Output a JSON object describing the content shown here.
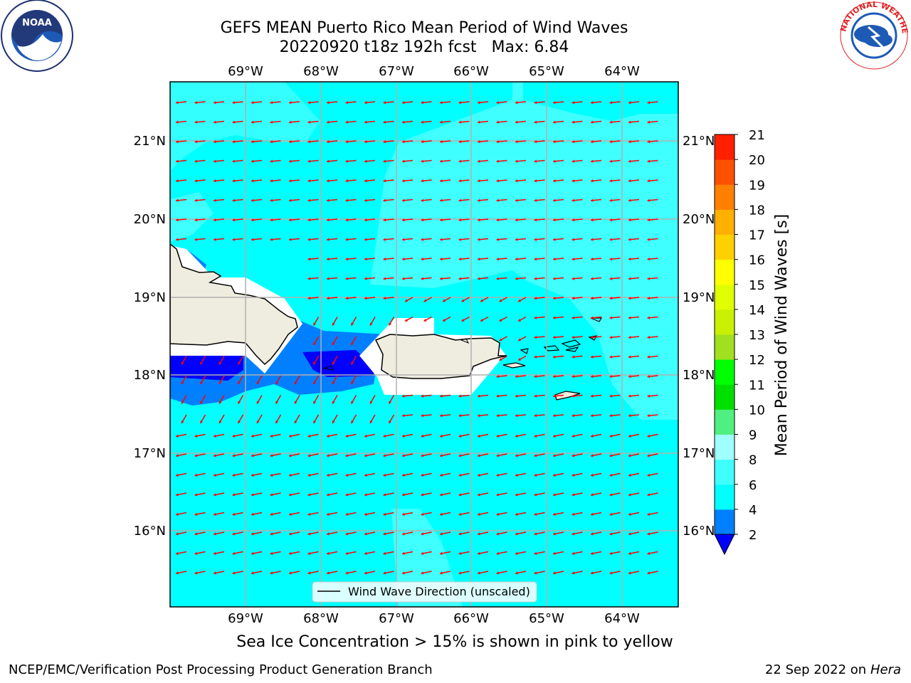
{
  "title": {
    "line1": "GEFS MEAN Puerto Rico Mean Period of Wind Waves",
    "line2": "20220920 t18z 192h fcst",
    "max_label": "Max: 6.84"
  },
  "logos": {
    "left": {
      "icon": "noaa-logo-icon",
      "text": "NOAA"
    },
    "right": {
      "icon": "nws-logo-icon",
      "text": "NATIONAL WEATHER SERVICE"
    }
  },
  "map": {
    "lon_labels": [
      "69°W",
      "68°W",
      "67°W",
      "66°W",
      "65°W",
      "64°W"
    ],
    "lat_labels": [
      "21°N",
      "20°N",
      "19°N",
      "18°N",
      "17°N",
      "16°N"
    ],
    "legend_label": "Wind Wave Direction (unscaled)",
    "arrow_color": "#ff0000",
    "land_color": "#eeeddf",
    "ocean_color": "#00ffff"
  },
  "colorbar": {
    "title": "Mean Period of Wind Waves [s]",
    "ticks": [
      "2",
      "4",
      "6",
      "8",
      "9",
      "10",
      "11",
      "12",
      "13",
      "14",
      "15",
      "16",
      "17",
      "18",
      "19",
      "20",
      "21"
    ],
    "colors": [
      "#0000ff",
      "#0080ff",
      "#00ffff",
      "#40ffff",
      "#a0ffff",
      "#50f080",
      "#00e000",
      "#00ff00",
      "#a0e020",
      "#c8f000",
      "#e0ff00",
      "#ffff00",
      "#ffd000",
      "#ffb000",
      "#ff8000",
      "#ff5000",
      "#ff2000",
      "#ff0000"
    ]
  },
  "footer": {
    "ice_note": "Sea Ice Concentration > 15% is shown in pink to yellow",
    "left": "NCEP/EMC/Verification Post Processing Product Generation Branch",
    "date": "22 Sep 2022 on",
    "machine": "Hera"
  }
}
